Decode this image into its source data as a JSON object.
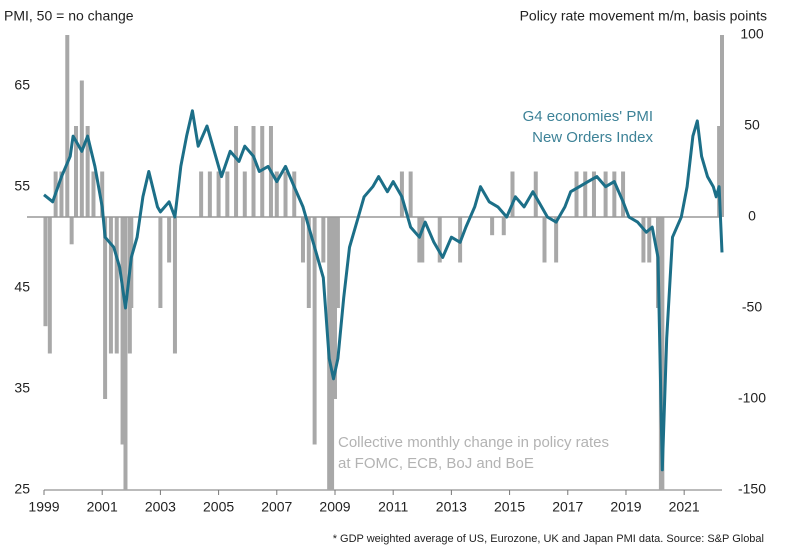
{
  "chart_data": {
    "type": "bar-line",
    "y_title": "PMI, 50 = no change",
    "y2_title": "Policy rate movement m/m, basis points",
    "line_annotation": [
      "G4 economies' PMI",
      "New Orders Index"
    ],
    "bar_annotation": [
      "Collective monthly change in policy rates",
      "at FOMC, ECB, BoJ and BoE"
    ],
    "footnote": "* GDP weighted average of US, Eurozone, UK and Japan PMI data. Source: S&P Global",
    "xlim": [
      1999,
      2022.3
    ],
    "xticks": [
      1999,
      2001,
      2003,
      2005,
      2007,
      2009,
      2011,
      2013,
      2015,
      2017,
      2019,
      2021
    ],
    "ylim": [
      25,
      70
    ],
    "yticks": [
      25,
      35,
      45,
      55,
      65
    ],
    "y2lim": [
      -150,
      100
    ],
    "y2ticks": [
      -150,
      -100,
      -50,
      0,
      50,
      100
    ],
    "series": [
      {
        "type": "line",
        "color": "#1c6f88",
        "x": [
          1999.0,
          1999.3,
          1999.6,
          1999.9,
          2000.0,
          2000.3,
          2000.5,
          2000.75,
          2001.0,
          2001.1,
          2001.4,
          2001.6,
          2001.8,
          2002.0,
          2002.2,
          2002.4,
          2002.6,
          2002.9,
          2003.0,
          2003.3,
          2003.5,
          2003.7,
          2003.9,
          2004.1,
          2004.3,
          2004.6,
          2004.9,
          2005.1,
          2005.4,
          2005.7,
          2005.9,
          2006.2,
          2006.4,
          2006.7,
          2007.0,
          2007.3,
          2007.6,
          2007.9,
          2008.1,
          2008.4,
          2008.6,
          2008.8,
          2008.95,
          2009.1,
          2009.3,
          2009.5,
          2009.8,
          2010.0,
          2010.3,
          2010.5,
          2010.8,
          2011.0,
          2011.3,
          2011.6,
          2011.9,
          2012.1,
          2012.4,
          2012.7,
          2013.0,
          2013.3,
          2013.5,
          2013.8,
          2014.0,
          2014.3,
          2014.6,
          2014.9,
          2015.2,
          2015.5,
          2015.8,
          2016.0,
          2016.3,
          2016.6,
          2016.9,
          2017.1,
          2017.4,
          2017.7,
          2018.0,
          2018.3,
          2018.6,
          2018.9,
          2019.1,
          2019.4,
          2019.7,
          2019.9,
          2020.1,
          2020.25,
          2020.4,
          2020.6,
          2020.9,
          2021.1,
          2021.3,
          2021.45,
          2021.6,
          2021.8,
          2022.0,
          2022.1,
          2022.2,
          2022.3
        ],
        "values": [
          54.2,
          53.5,
          56,
          58,
          60,
          58.5,
          60,
          57,
          53,
          50,
          49,
          47,
          43,
          48,
          50,
          54,
          56.5,
          53,
          52.5,
          53.5,
          52,
          57,
          60,
          62.5,
          59,
          61,
          58,
          56,
          58.5,
          57.5,
          59,
          58,
          56.5,
          57,
          55.5,
          57,
          55,
          53,
          51,
          48,
          46,
          38,
          36,
          38,
          44,
          49,
          52,
          54,
          55,
          56,
          54.5,
          55.5,
          54,
          51,
          50,
          51.5,
          49.5,
          48,
          50,
          49.5,
          51,
          53,
          55,
          53.5,
          53,
          52,
          54,
          53,
          54.5,
          53.5,
          52,
          51.5,
          53,
          54.5,
          55,
          55.5,
          56,
          55,
          55.5,
          53.5,
          52,
          51.5,
          50.5,
          51,
          48,
          27,
          40,
          50,
          52,
          55,
          60,
          61.5,
          58,
          56,
          55,
          54,
          55,
          48.5
        ]
      },
      {
        "type": "bar",
        "axis": "y2",
        "color": "#a8a8a8",
        "x": [
          1999.05,
          1999.2,
          1999.4,
          1999.6,
          1999.8,
          1999.95,
          2000.1,
          2000.3,
          2000.5,
          2000.7,
          2001.0,
          2001.1,
          2001.3,
          2001.5,
          2001.7,
          2001.8,
          2001.95,
          2002.0,
          2003.0,
          2003.3,
          2003.5,
          2004.4,
          2004.7,
          2005.0,
          2005.3,
          2005.6,
          2005.9,
          2006.2,
          2006.5,
          2006.8,
          2007.0,
          2007.3,
          2007.6,
          2007.9,
          2008.1,
          2008.3,
          2008.6,
          2008.8,
          2008.9,
          2009.0,
          2009.1,
          2011.3,
          2011.6,
          2011.9,
          2012.0,
          2012.6,
          2013.3,
          2014.4,
          2014.8,
          2015.1,
          2015.9,
          2016.2,
          2016.6,
          2017.3,
          2017.6,
          2017.9,
          2018.3,
          2018.6,
          2018.9,
          2019.6,
          2019.8,
          2020.1,
          2020.2,
          2020.25,
          2022.2,
          2022.3
        ],
        "values": [
          -60,
          -75,
          25,
          25,
          100,
          -15,
          50,
          75,
          50,
          25,
          25,
          -100,
          -75,
          -75,
          -125,
          -150,
          -75,
          -50,
          -50,
          -25,
          -75,
          25,
          25,
          25,
          25,
          50,
          25,
          50,
          50,
          50,
          25,
          25,
          25,
          -25,
          -50,
          -125,
          -25,
          -150,
          -150,
          -100,
          -50,
          25,
          25,
          -25,
          -25,
          -25,
          -25,
          -10,
          -10,
          25,
          25,
          -25,
          -25,
          25,
          25,
          25,
          25,
          25,
          25,
          -25,
          -25,
          -50,
          -150,
          -150,
          50,
          100
        ]
      }
    ]
  }
}
